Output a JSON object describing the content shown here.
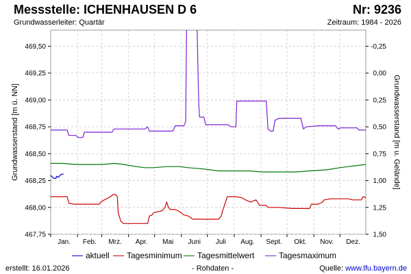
{
  "header": {
    "title": "Messstelle: ICHENHAUSEN D 6",
    "number": "Nr: 9236",
    "subtitle_left": "Grundwasserleiter: Quartär",
    "subtitle_right": "Zeitraum: 1984 - 2026"
  },
  "footer": {
    "created": "erstellt:  16.01.2026",
    "raw": "- Rohdaten -",
    "source_label": "Quelle: ",
    "source_link": "www.lfu.bayern.de"
  },
  "chart_data": {
    "type": "line",
    "ylabel": "Grundwasserstand [m ü. NN]",
    "ylabel_right": "Grundwasserstand [m u. Gelände]",
    "ylim": [
      467.75,
      469.65
    ],
    "yticks": [
      "467,75",
      "468,00",
      "468,25",
      "468,50",
      "468,75",
      "469,00",
      "469,25",
      "469,50"
    ],
    "yticks_right": [
      "1,50",
      "1,25",
      "1,00",
      "0,75",
      "0,50",
      "0,25",
      "0,00",
      "-0,25"
    ],
    "months": [
      "Jan.",
      "Feb.",
      "Mrz.",
      "Apr.",
      "Mai",
      "Juni",
      "Juli",
      "Aug.",
      "Sept.",
      "Okt.",
      "Nov.",
      "Dez."
    ],
    "grid": true,
    "legend_position": "bottom",
    "colors": {
      "aktuell": "#0000cc",
      "Tagesminimum": "#cc0000",
      "Tagesmittelwert": "#007700",
      "Tagesmaximum": "#7a1fd6"
    },
    "series": [
      {
        "name": "aktuell",
        "color": "#0000cc",
        "points": [
          [
            1,
            468.3
          ],
          [
            3,
            468.28
          ],
          [
            5,
            468.27
          ],
          [
            7,
            468.27
          ],
          [
            8,
            468.29
          ],
          [
            10,
            468.28
          ],
          [
            12,
            468.3
          ],
          [
            14,
            468.31
          ],
          [
            16,
            468.31
          ]
        ]
      },
      {
        "name": "Tagesminimum",
        "color": "#cc0000",
        "points": [
          [
            1,
            468.1
          ],
          [
            20,
            468.1
          ],
          [
            22,
            468.04
          ],
          [
            28,
            468.03
          ],
          [
            45,
            468.03
          ],
          [
            57,
            468.03
          ],
          [
            59,
            468.05
          ],
          [
            63,
            468.07
          ],
          [
            70,
            468.1
          ],
          [
            73,
            468.12
          ],
          [
            76,
            468.12
          ],
          [
            78,
            468.1
          ],
          [
            79,
            467.95
          ],
          [
            82,
            467.87
          ],
          [
            85,
            467.85
          ],
          [
            100,
            467.85
          ],
          [
            110,
            467.85
          ],
          [
            113,
            467.85
          ],
          [
            115,
            467.92
          ],
          [
            118,
            467.93
          ],
          [
            120,
            467.95
          ],
          [
            125,
            467.96
          ],
          [
            130,
            467.97
          ],
          [
            133,
            468.0
          ],
          [
            135,
            468.05
          ],
          [
            137,
            468.0
          ],
          [
            139,
            467.98
          ],
          [
            145,
            467.98
          ],
          [
            150,
            467.96
          ],
          [
            155,
            467.93
          ],
          [
            160,
            467.92
          ],
          [
            165,
            467.89
          ],
          [
            180,
            467.89
          ],
          [
            195,
            467.89
          ],
          [
            198,
            467.92
          ],
          [
            200,
            467.98
          ],
          [
            203,
            468.05
          ],
          [
            205,
            468.1
          ],
          [
            215,
            468.1
          ],
          [
            222,
            468.09
          ],
          [
            226,
            468.07
          ],
          [
            232,
            468.05
          ],
          [
            238,
            468.07
          ],
          [
            240,
            468.05
          ],
          [
            242,
            468.02
          ],
          [
            250,
            468.02
          ],
          [
            252,
            468.0
          ],
          [
            265,
            468.0
          ],
          [
            280,
            467.99
          ],
          [
            300,
            467.99
          ],
          [
            302,
            468.03
          ],
          [
            310,
            468.03
          ],
          [
            315,
            468.05
          ],
          [
            317,
            468.07
          ],
          [
            325,
            468.08
          ],
          [
            345,
            468.08
          ],
          [
            350,
            468.07
          ],
          [
            360,
            468.07
          ],
          [
            362,
            468.1
          ],
          [
            365,
            468.09
          ]
        ]
      },
      {
        "name": "Tagesmittelwert",
        "color": "#007700",
        "points": [
          [
            1,
            468.41
          ],
          [
            15,
            468.41
          ],
          [
            30,
            468.4
          ],
          [
            60,
            468.4
          ],
          [
            75,
            468.41
          ],
          [
            85,
            468.4
          ],
          [
            100,
            468.38
          ],
          [
            110,
            468.37
          ],
          [
            120,
            468.37
          ],
          [
            135,
            468.38
          ],
          [
            150,
            468.38
          ],
          [
            160,
            468.37
          ],
          [
            175,
            468.36
          ],
          [
            185,
            468.35
          ],
          [
            195,
            468.34
          ],
          [
            210,
            468.34
          ],
          [
            230,
            468.34
          ],
          [
            245,
            468.33
          ],
          [
            255,
            468.33
          ],
          [
            270,
            468.33
          ],
          [
            285,
            468.33
          ],
          [
            300,
            468.34
          ],
          [
            320,
            468.35
          ],
          [
            335,
            468.37
          ],
          [
            345,
            468.38
          ],
          [
            355,
            468.39
          ],
          [
            365,
            468.4
          ]
        ]
      },
      {
        "name": "Tagesmaximum",
        "color": "#7a1fd6",
        "points": [
          [
            1,
            468.72
          ],
          [
            20,
            468.72
          ],
          [
            22,
            468.67
          ],
          [
            30,
            468.67
          ],
          [
            33,
            468.65
          ],
          [
            38,
            468.65
          ],
          [
            40,
            468.7
          ],
          [
            60,
            468.7
          ],
          [
            72,
            468.7
          ],
          [
            74,
            468.73
          ],
          [
            83,
            468.73
          ],
          [
            95,
            468.73
          ],
          [
            110,
            468.73
          ],
          [
            113,
            468.75
          ],
          [
            115,
            468.71
          ],
          [
            130,
            468.71
          ],
          [
            142,
            468.71
          ],
          [
            145,
            468.76
          ],
          [
            155,
            468.76
          ],
          [
            157,
            468.8
          ],
          [
            158,
            469.7
          ],
          [
            168,
            469.7
          ],
          [
            170,
            469.7
          ],
          [
            172,
            468.97
          ],
          [
            173,
            468.84
          ],
          [
            175,
            468.84
          ],
          [
            178,
            468.84
          ],
          [
            180,
            468.77
          ],
          [
            200,
            468.77
          ],
          [
            205,
            468.77
          ],
          [
            210,
            468.75
          ],
          [
            215,
            468.75
          ],
          [
            216,
            468.99
          ],
          [
            225,
            468.99
          ],
          [
            240,
            468.99
          ],
          [
            250,
            468.99
          ],
          [
            252,
            468.73
          ],
          [
            255,
            468.71
          ],
          [
            258,
            468.71
          ],
          [
            260,
            468.81
          ],
          [
            265,
            468.83
          ],
          [
            280,
            468.83
          ],
          [
            290,
            468.83
          ],
          [
            293,
            468.73
          ],
          [
            296,
            468.75
          ],
          [
            310,
            468.76
          ],
          [
            330,
            468.76
          ],
          [
            333,
            468.73
          ],
          [
            336,
            468.74
          ],
          [
            345,
            468.74
          ],
          [
            355,
            468.74
          ],
          [
            357,
            468.72
          ],
          [
            365,
            468.72
          ]
        ]
      }
    ]
  }
}
